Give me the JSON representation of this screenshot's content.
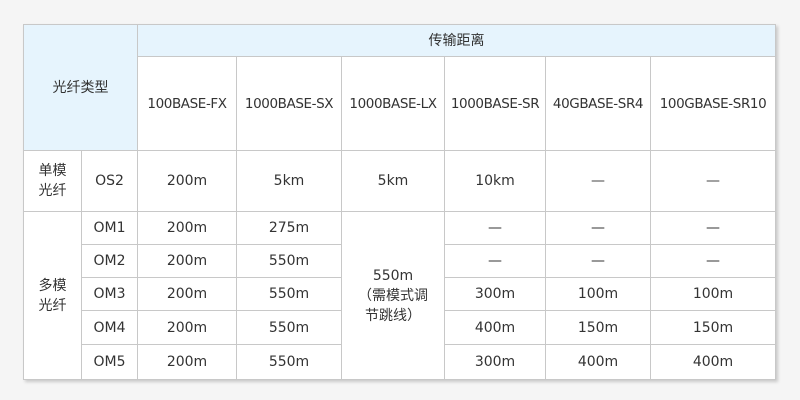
{
  "header": {
    "fiber_type": "光纤类型",
    "distance": "传输距离",
    "standards": [
      "100BASE-FX",
      "1000BASE-SX",
      "1000BASE-LX",
      "1000BASE-SR",
      "40GBASE-SR4",
      "100GBASE-SR10"
    ]
  },
  "single_mode": {
    "label_line1": "单模",
    "label_line2": "光纤",
    "rows": [
      {
        "type": "OS2",
        "values": [
          "200m",
          "5km",
          "5km",
          "10km",
          "—",
          "—"
        ]
      }
    ]
  },
  "multi_mode": {
    "label_line1": "多模",
    "label_line2": "光纤",
    "lx_value": "550m",
    "lx_note": "（需模式调节跳线）",
    "rows": [
      {
        "type": "OM1",
        "fx": "200m",
        "sx": "275m",
        "sr": "—",
        "sr4": "—",
        "sr10": "—"
      },
      {
        "type": "OM2",
        "fx": "200m",
        "sx": "550m",
        "sr": "—",
        "sr4": "—",
        "sr10": "—"
      },
      {
        "type": "OM3",
        "fx": "200m",
        "sx": "550m",
        "sr": "300m",
        "sr4": "100m",
        "sr10": "100m"
      },
      {
        "type": "OM4",
        "fx": "200m",
        "sx": "550m",
        "sr": "400m",
        "sr4": "150m",
        "sr10": "150m"
      },
      {
        "type": "OM5",
        "fx": "200m",
        "sx": "550m",
        "sr": "300m",
        "sr4": "400m",
        "sr10": "400m"
      }
    ]
  },
  "colors": {
    "header_bg": "#e6f4fd",
    "border": "#c8c8c8"
  }
}
